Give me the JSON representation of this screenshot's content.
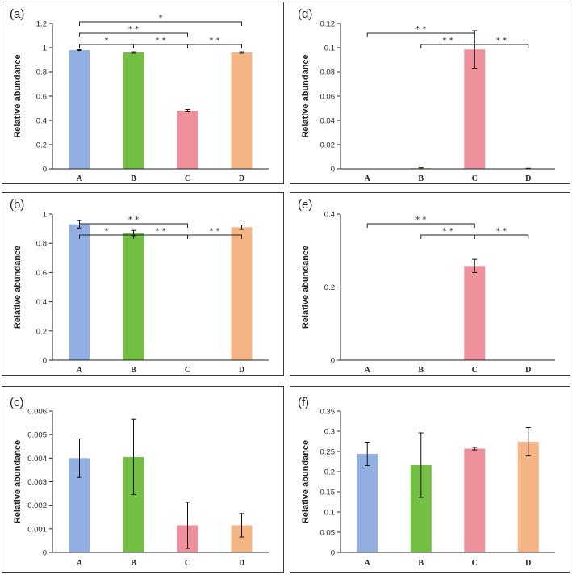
{
  "chart_data": [
    {
      "id": "a",
      "panel_label": "(a)",
      "type": "bar",
      "ylabel": "Relative abundance",
      "categories": [
        "A",
        "B",
        "C",
        "D"
      ],
      "values": [
        0.98,
        0.96,
        0.48,
        0.96
      ],
      "errors": [
        0.004,
        0.006,
        0.01,
        0.006
      ],
      "colors": [
        "#93aee0",
        "#72bf44",
        "#ee919d",
        "#f5b483"
      ],
      "ylim": [
        0,
        1.2
      ],
      "yticks": [
        0,
        0.2,
        0.4,
        0.6,
        0.8,
        1,
        1.2
      ],
      "ytick_labels": [
        "0",
        "0.2",
        "0.4",
        "0.6",
        "0.8",
        "1",
        "1.2"
      ],
      "significance": [
        {
          "from": "A",
          "to": "B",
          "label": "*"
        },
        {
          "from": "B",
          "to": "C",
          "label": "* *"
        },
        {
          "from": "C",
          "to": "D",
          "label": "* *"
        },
        {
          "from": "A",
          "to": "C",
          "label": "* *"
        },
        {
          "from": "A",
          "to": "D",
          "label": "*"
        }
      ]
    },
    {
      "id": "b",
      "panel_label": "(b)",
      "type": "bar",
      "ylabel": "Relative abundance",
      "categories": [
        "A",
        "B",
        "C",
        "D"
      ],
      "values": [
        0.93,
        0.87,
        0.0,
        0.91
      ],
      "errors": [
        0.025,
        0.018,
        0.0,
        0.015
      ],
      "colors": [
        "#93aee0",
        "#72bf44",
        "#ee919d",
        "#f5b483"
      ],
      "ylim": [
        0,
        1
      ],
      "yticks": [
        0,
        0.2,
        0.4,
        0.6,
        0.8,
        1
      ],
      "ytick_labels": [
        "0",
        "0.2",
        "0.4",
        "0.6",
        "0.8",
        "1"
      ],
      "significance": [
        {
          "from": "A",
          "to": "B",
          "label": "*"
        },
        {
          "from": "B",
          "to": "C",
          "label": "* *"
        },
        {
          "from": "C",
          "to": "D",
          "label": "* *"
        },
        {
          "from": "A",
          "to": "C",
          "label": "* *"
        }
      ]
    },
    {
      "id": "c",
      "panel_label": "(c)",
      "type": "bar",
      "ylabel": "Relative abundance",
      "categories": [
        "A",
        "B",
        "C",
        "D"
      ],
      "values": [
        0.004,
        0.00405,
        0.00115,
        0.00115
      ],
      "errors": [
        0.00082,
        0.0016,
        0.00098,
        0.0005
      ],
      "colors": [
        "#93aee0",
        "#72bf44",
        "#ee919d",
        "#f5b483"
      ],
      "ylim": [
        0,
        0.006
      ],
      "yticks": [
        0,
        0.001,
        0.002,
        0.003,
        0.004,
        0.005,
        0.006
      ],
      "ytick_labels": [
        "0",
        "0.001",
        "0.002",
        "0.003",
        "0.004",
        "0.005",
        "0.006"
      ],
      "significance": []
    },
    {
      "id": "d",
      "panel_label": "(d)",
      "type": "bar",
      "ylabel": "Relative abundance",
      "categories": [
        "A",
        "B",
        "C",
        "D"
      ],
      "values": [
        0.0,
        0.0005,
        0.0985,
        0.0003
      ],
      "errors": [
        0.0,
        0.0004,
        0.0155,
        0.0002
      ],
      "colors": [
        "#93aee0",
        "#72bf44",
        "#ee919d",
        "#f5b483"
      ],
      "ylim": [
        0,
        0.12
      ],
      "yticks": [
        0,
        0.02,
        0.04,
        0.06,
        0.08,
        0.1,
        0.12
      ],
      "ytick_labels": [
        "0",
        "0.02",
        "0.04",
        "0.06",
        "0.08",
        "0.1",
        "0.12"
      ],
      "significance": [
        {
          "from": "B",
          "to": "C",
          "label": "* *"
        },
        {
          "from": "C",
          "to": "D",
          "label": "* *"
        },
        {
          "from": "A",
          "to": "C",
          "label": "* *"
        }
      ]
    },
    {
      "id": "e",
      "panel_label": "(e)",
      "type": "bar",
      "ylabel": "Relative abundance",
      "categories": [
        "A",
        "B",
        "C",
        "D"
      ],
      "values": [
        0.0,
        0.0,
        0.258,
        0.0
      ],
      "errors": [
        0.0,
        0.0,
        0.018,
        0.0
      ],
      "colors": [
        "#93aee0",
        "#72bf44",
        "#ee919d",
        "#f5b483"
      ],
      "ylim": [
        0,
        0.4
      ],
      "yticks": [
        0,
        0.2,
        0.4
      ],
      "ytick_labels": [
        "0",
        "0.2",
        "0.4"
      ],
      "significance": [
        {
          "from": "B",
          "to": "C",
          "label": "* *"
        },
        {
          "from": "C",
          "to": "D",
          "label": "* *"
        },
        {
          "from": "A",
          "to": "C",
          "label": "* *"
        }
      ]
    },
    {
      "id": "f",
      "panel_label": "(f)",
      "type": "bar",
      "ylabel": "Relative abundance",
      "categories": [
        "A",
        "B",
        "C",
        "D"
      ],
      "values": [
        0.244,
        0.216,
        0.257,
        0.274
      ],
      "errors": [
        0.029,
        0.08,
        0.003,
        0.035
      ],
      "colors": [
        "#93aee0",
        "#72bf44",
        "#ee919d",
        "#f5b483"
      ],
      "ylim": [
        0,
        0.35
      ],
      "yticks": [
        0,
        0.05,
        0.1,
        0.15,
        0.2,
        0.25,
        0.3,
        0.35
      ],
      "ytick_labels": [
        "0",
        "0.05",
        "0.1",
        "0.15",
        "0.2",
        "0.25",
        "0.3",
        "0.35"
      ],
      "significance": []
    }
  ]
}
